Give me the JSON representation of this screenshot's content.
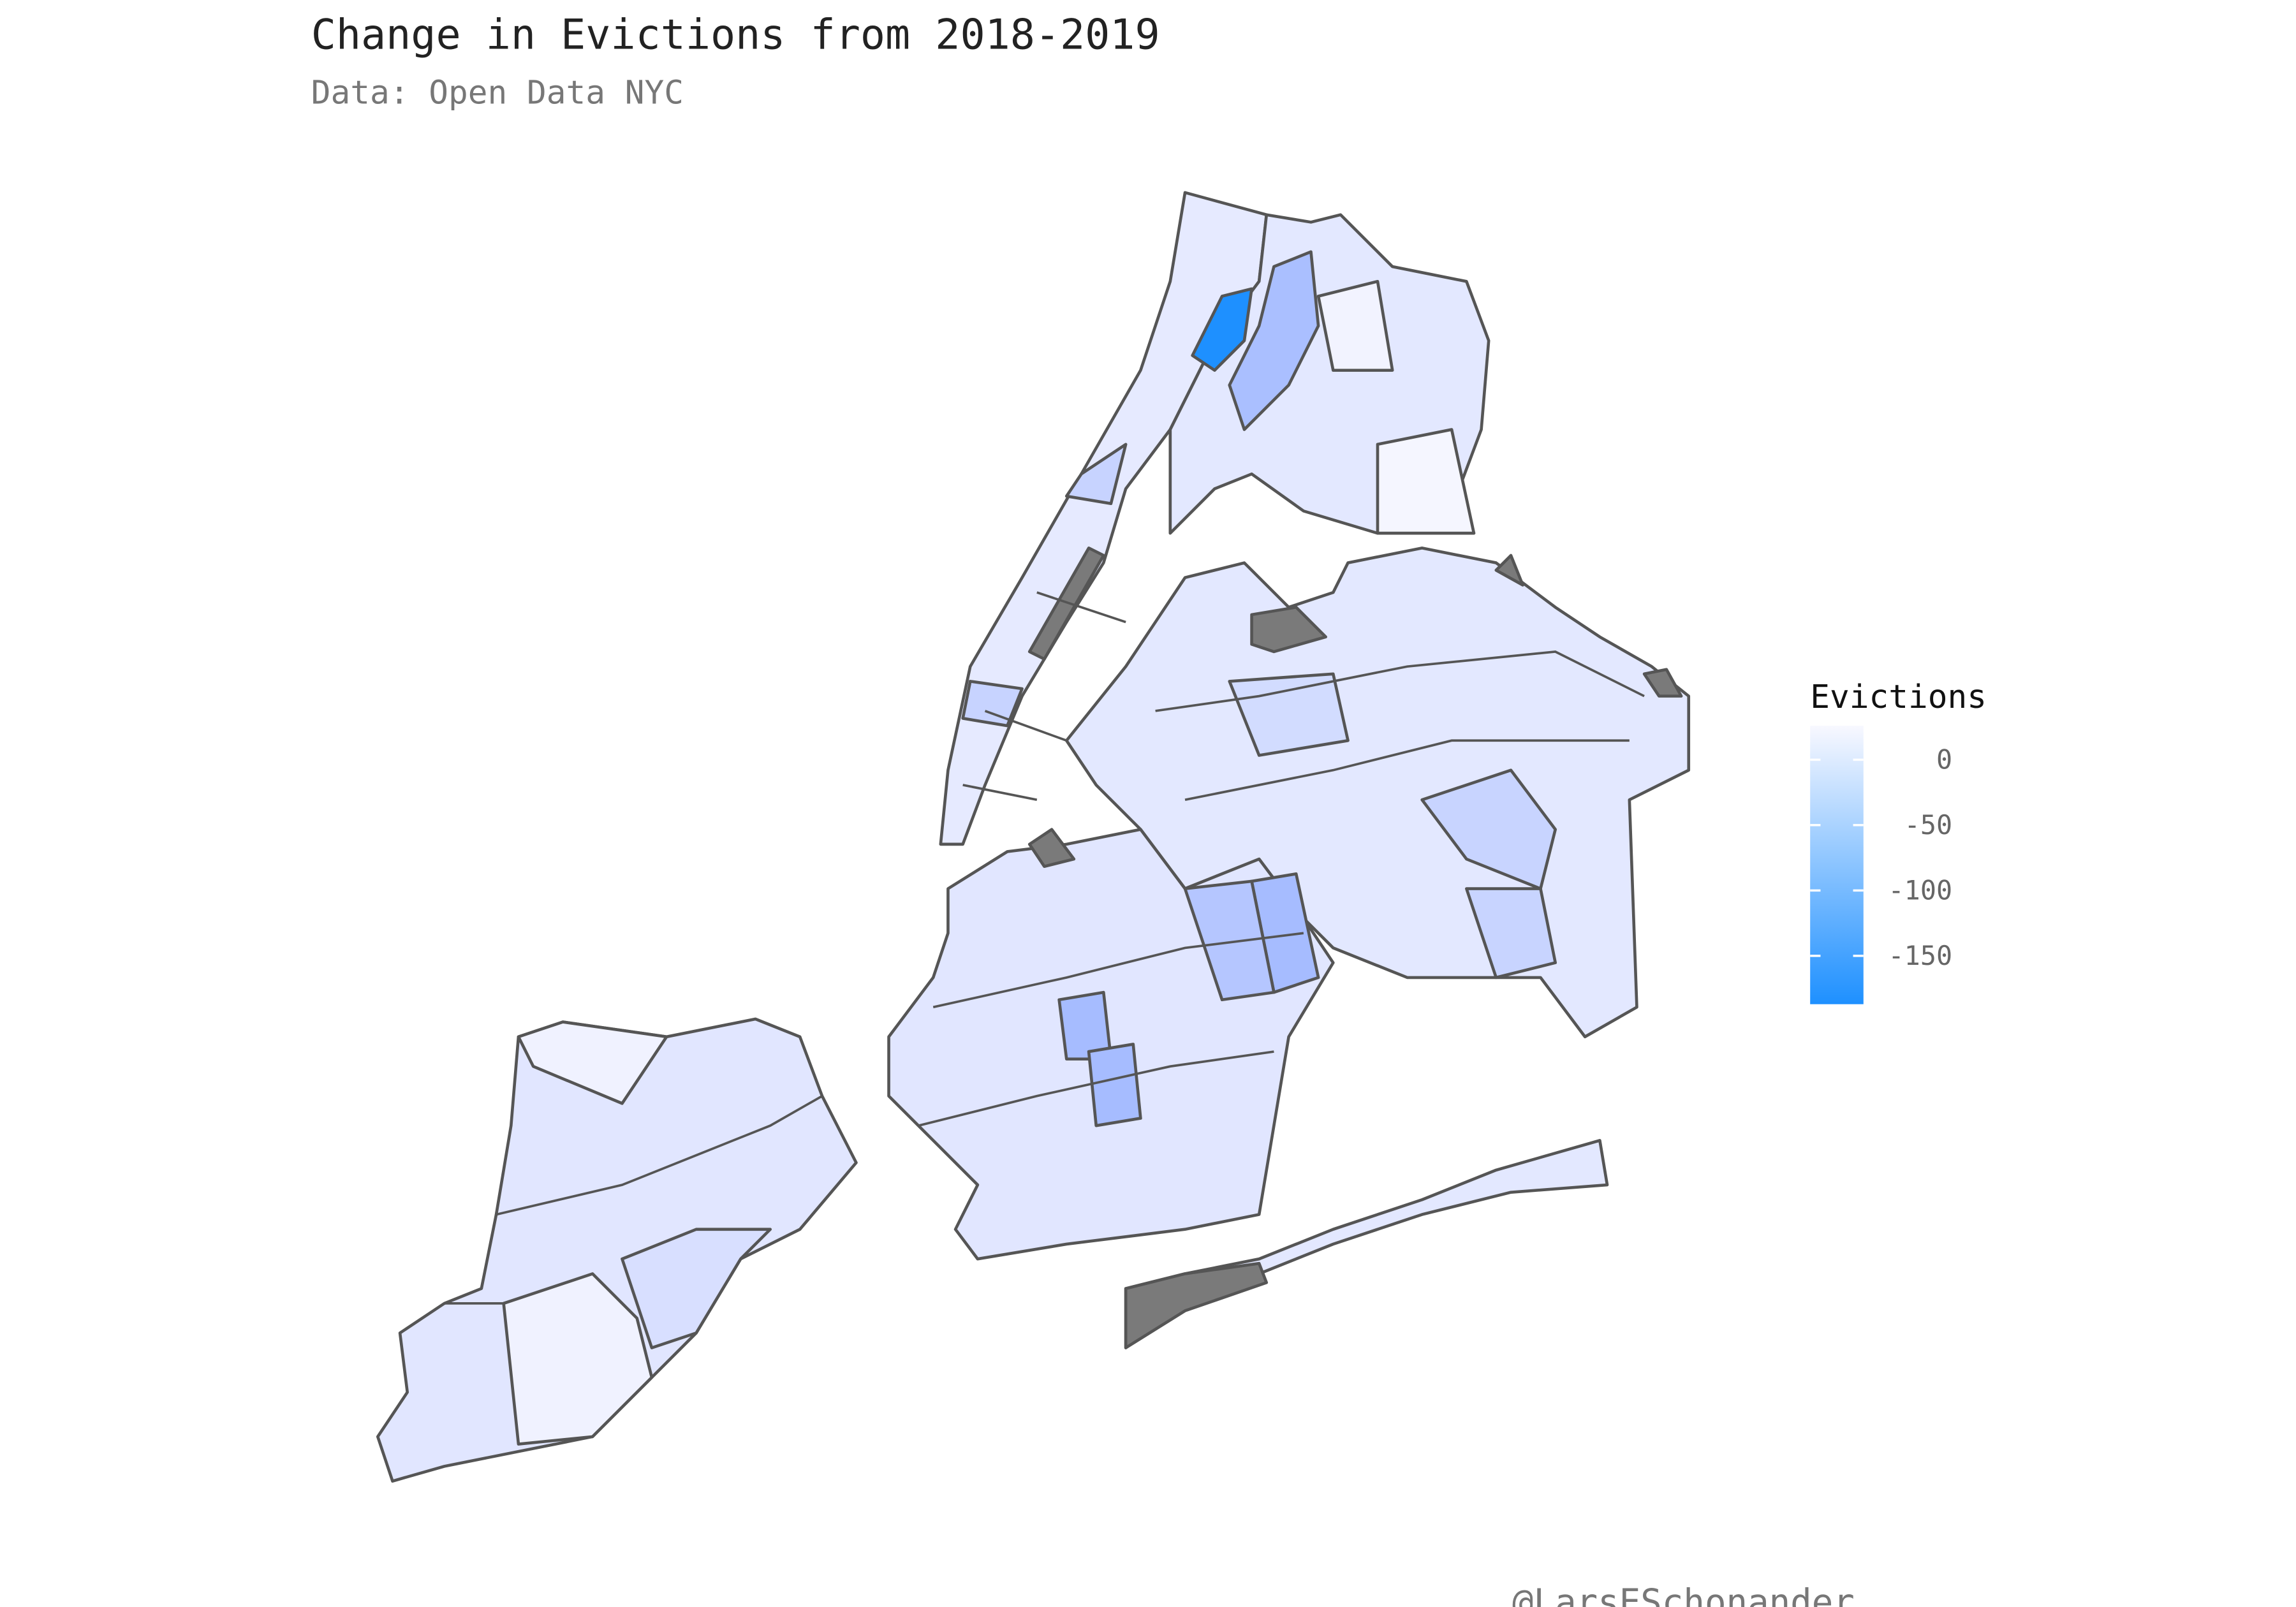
{
  "title": "Change in Evictions from 2018-2019",
  "subtitle": "Data: Open Data NYC",
  "legend": {
    "title": "Evictions",
    "limits": [
      -187,
      26
    ],
    "ticks": [
      0,
      -50,
      -100,
      -150
    ],
    "low_color": "#1e90ff",
    "high_color": "#f8f8ff"
  },
  "caption": "@LarsESchonander"
}
